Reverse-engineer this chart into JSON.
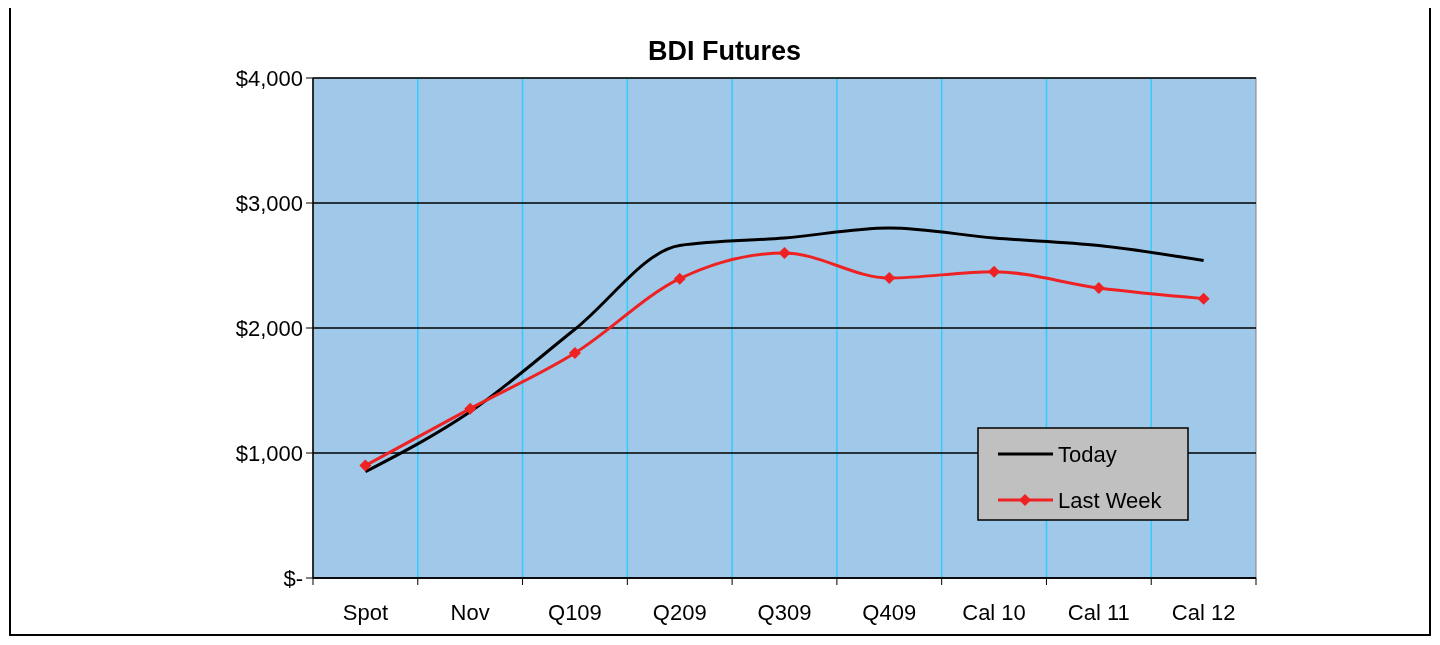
{
  "chart_data": {
    "type": "line",
    "title": "BDI Futures",
    "categories": [
      "Spot",
      "Nov",
      "Q109",
      "Q209",
      "Q309",
      "Q409",
      "Cal 10",
      "Cal 11",
      "Cal 12"
    ],
    "series": [
      {
        "name": "Today",
        "color": "#000000",
        "marker": "none",
        "values": [
          850,
          1330,
          1990,
          2660,
          2720,
          2800,
          2720,
          2660,
          2540
        ]
      },
      {
        "name": "Last Week",
        "color": "#ee2222",
        "marker": "diamond",
        "values": [
          900,
          1355,
          1800,
          2395,
          2600,
          2400,
          2450,
          2320,
          2235
        ]
      }
    ],
    "ylim": [
      0,
      4000
    ],
    "yticks": [
      {
        "value": 0,
        "label": "$-"
      },
      {
        "value": 1000,
        "label": "$1,000"
      },
      {
        "value": 2000,
        "label": "$2,000"
      },
      {
        "value": 3000,
        "label": "$3,000"
      },
      {
        "value": 4000,
        "label": "$4,000"
      }
    ],
    "grid": true,
    "legend": "bottom right",
    "line_style": "solid"
  }
}
